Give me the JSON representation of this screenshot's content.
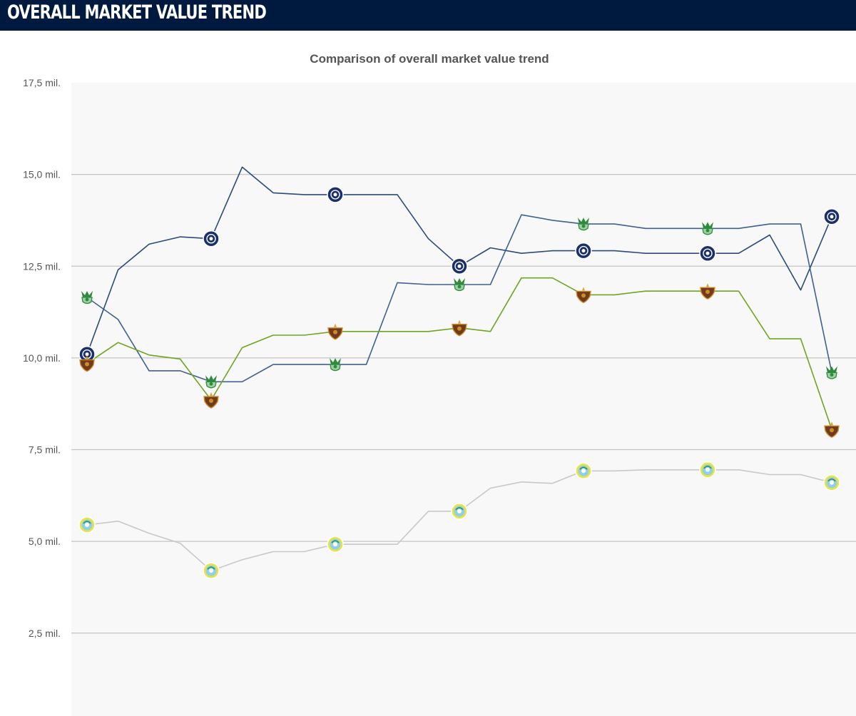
{
  "header": {
    "title": "OVERALL MARKET VALUE TREND"
  },
  "chart_data": {
    "type": "line",
    "title": "Comparison of overall market value trend",
    "xlabel": "",
    "ylabel": "",
    "ylim": [
      0,
      17.5
    ],
    "y_ticks": [
      2.5,
      5.0,
      7.5,
      10.0,
      12.5,
      15.0,
      17.5
    ],
    "y_tick_labels": [
      "2,5 mil.",
      "5,0 mil.",
      "7,5 mil.",
      "10,0 mil.",
      "12,5 mil.",
      "15,0 mil.",
      "17,5 mil."
    ],
    "grid": true,
    "legend": "none",
    "x": [
      0,
      1,
      2,
      3,
      4,
      5,
      6,
      7,
      8,
      9,
      10,
      11,
      12,
      13,
      14,
      15,
      16,
      17,
      18,
      19,
      20,
      21,
      22,
      23,
      24
    ],
    "series": [
      {
        "color": "#2b4a7a",
        "marker": "navy-crest",
        "values": [
          10.1,
          12.4,
          13.1,
          13.3,
          13.25,
          15.2,
          14.5,
          14.45,
          14.45,
          14.45,
          14.45,
          13.25,
          12.5,
          13.0,
          12.85,
          12.92,
          12.92,
          12.92,
          12.85,
          12.85,
          12.85,
          12.85,
          13.35,
          11.85,
          13.85
        ],
        "marker_indices": [
          0,
          4,
          8,
          12,
          16,
          20,
          24
        ]
      },
      {
        "color": "#3f6090",
        "marker": "green-crest",
        "values": [
          11.65,
          11.05,
          9.65,
          9.65,
          9.35,
          9.35,
          9.82,
          9.82,
          9.82,
          9.82,
          12.05,
          12.0,
          12.0,
          12.0,
          13.9,
          13.75,
          13.65,
          13.65,
          13.53,
          13.53,
          13.53,
          13.53,
          13.65,
          13.65,
          9.6
        ],
        "marker_indices": [
          0,
          4,
          8,
          12,
          16,
          20,
          24
        ]
      },
      {
        "color": "#6fa523",
        "marker": "purple-crest",
        "values": [
          9.85,
          10.42,
          10.08,
          9.97,
          8.85,
          10.28,
          10.62,
          10.62,
          10.72,
          10.72,
          10.72,
          10.72,
          10.82,
          10.72,
          12.18,
          12.18,
          11.72,
          11.72,
          11.82,
          11.82,
          11.82,
          11.82,
          10.52,
          10.52,
          8.05
        ],
        "marker_indices": [
          0,
          4,
          8,
          12,
          16,
          20,
          24
        ]
      },
      {
        "color": "#c8c8c8",
        "marker": "yellow-crest",
        "values": [
          5.45,
          5.55,
          5.22,
          4.95,
          4.2,
          4.5,
          4.72,
          4.72,
          4.92,
          4.92,
          4.92,
          5.82,
          5.82,
          6.45,
          6.62,
          6.58,
          6.92,
          6.92,
          6.95,
          6.95,
          6.95,
          6.95,
          6.82,
          6.82,
          6.6
        ],
        "marker_indices": [
          0,
          4,
          8,
          12,
          16,
          20,
          24
        ]
      }
    ]
  }
}
